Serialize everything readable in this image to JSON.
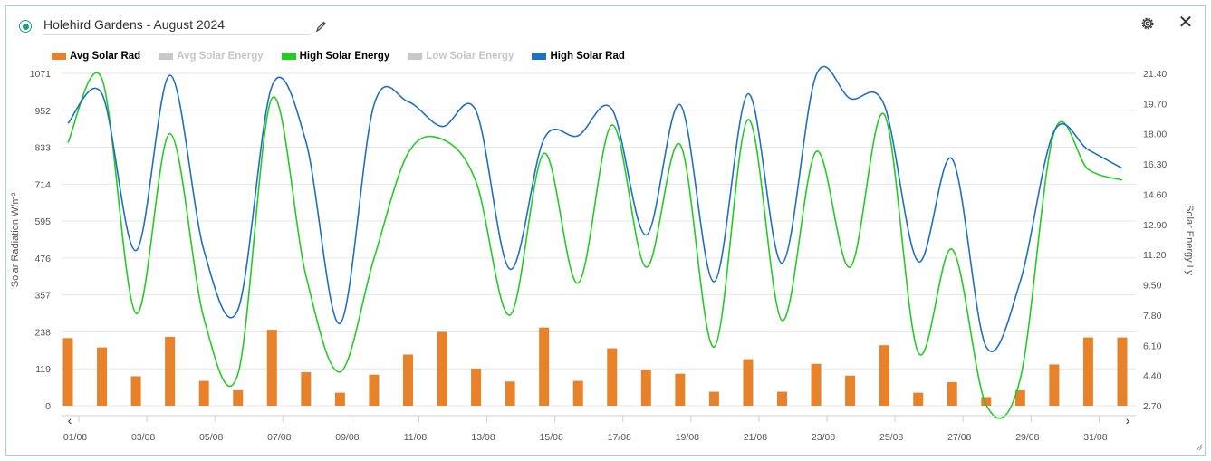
{
  "header": {
    "title": "Holehird Gardens - August 2024",
    "status": "online",
    "edit_icon": "pencil-icon",
    "settings_icon": "gear-icon",
    "close_icon": "close-icon",
    "close_glyph": "✕"
  },
  "legend": [
    {
      "label": "Avg Solar Rad",
      "color": "#e8822a",
      "visible": true
    },
    {
      "label": "Avg Solar Energy",
      "color": "#c8c8c8",
      "visible": false
    },
    {
      "label": "High Solar Energy",
      "color": "#22cc22",
      "visible": true
    },
    {
      "label": "Low Solar Energy",
      "color": "#c8c8c8",
      "visible": false
    },
    {
      "label": "High Solar Rad",
      "color": "#1f6fc5",
      "visible": true
    }
  ],
  "nav": {
    "prev": "‹",
    "next": "›"
  },
  "chart_data": {
    "type": "bar+line",
    "x_labels": [
      "01/08",
      "03/08",
      "05/08",
      "07/08",
      "09/08",
      "11/08",
      "13/08",
      "15/08",
      "17/08",
      "19/08",
      "21/08",
      "23/08",
      "25/08",
      "27/08",
      "29/08",
      "31/08"
    ],
    "left_axis": {
      "label": "Solar Radiation W/m²",
      "ticks": [
        "0",
        "119",
        "238",
        "357",
        "476",
        "595",
        "714",
        "833",
        "952",
        "1071"
      ],
      "ylim": [
        0,
        1071
      ]
    },
    "right_axis": {
      "label": "Solar Energy Ly",
      "ticks": [
        "2.70",
        "4.40",
        "6.10",
        "7.80",
        "9.50",
        "11.20",
        "12.90",
        "14.60",
        "16.30",
        "18.00",
        "19.70",
        "21.40"
      ],
      "ylim": [
        2.7,
        21.4
      ]
    },
    "series": [
      {
        "name": "Avg Solar Rad",
        "type": "bar",
        "axis": "left",
        "color": "#e8822a",
        "values": [
          218,
          188,
          95,
          222,
          80,
          50,
          245,
          108,
          42,
          100,
          165,
          238,
          120,
          78,
          252,
          80,
          185,
          115,
          103,
          45,
          150,
          45,
          135,
          97,
          195,
          42,
          76,
          28,
          50,
          133,
          220,
          220
        ]
      },
      {
        "name": "High Solar Energy",
        "type": "line",
        "axis": "right",
        "color": "#22cc22",
        "values": [
          17.5,
          21.1,
          7.9,
          18.0,
          7.6,
          4.5,
          20.0,
          10.0,
          4.6,
          11.0,
          16.9,
          17.7,
          15.3,
          7.8,
          16.9,
          9.6,
          18.5,
          10.5,
          17.4,
          6.0,
          18.8,
          7.5,
          17.0,
          10.5,
          19.1,
          5.7,
          11.5,
          2.75,
          4.2,
          18.1,
          16.0,
          15.4
        ]
      },
      {
        "name": "High Solar Rad",
        "type": "line",
        "axis": "left",
        "color": "#1f6fc5",
        "values": [
          910,
          1005,
          500,
          1065,
          500,
          310,
          1030,
          850,
          265,
          970,
          980,
          900,
          950,
          440,
          860,
          870,
          955,
          550,
          970,
          400,
          1005,
          460,
          1065,
          990,
          970,
          465,
          795,
          190,
          400,
          885,
          825,
          765
        ]
      }
    ]
  }
}
